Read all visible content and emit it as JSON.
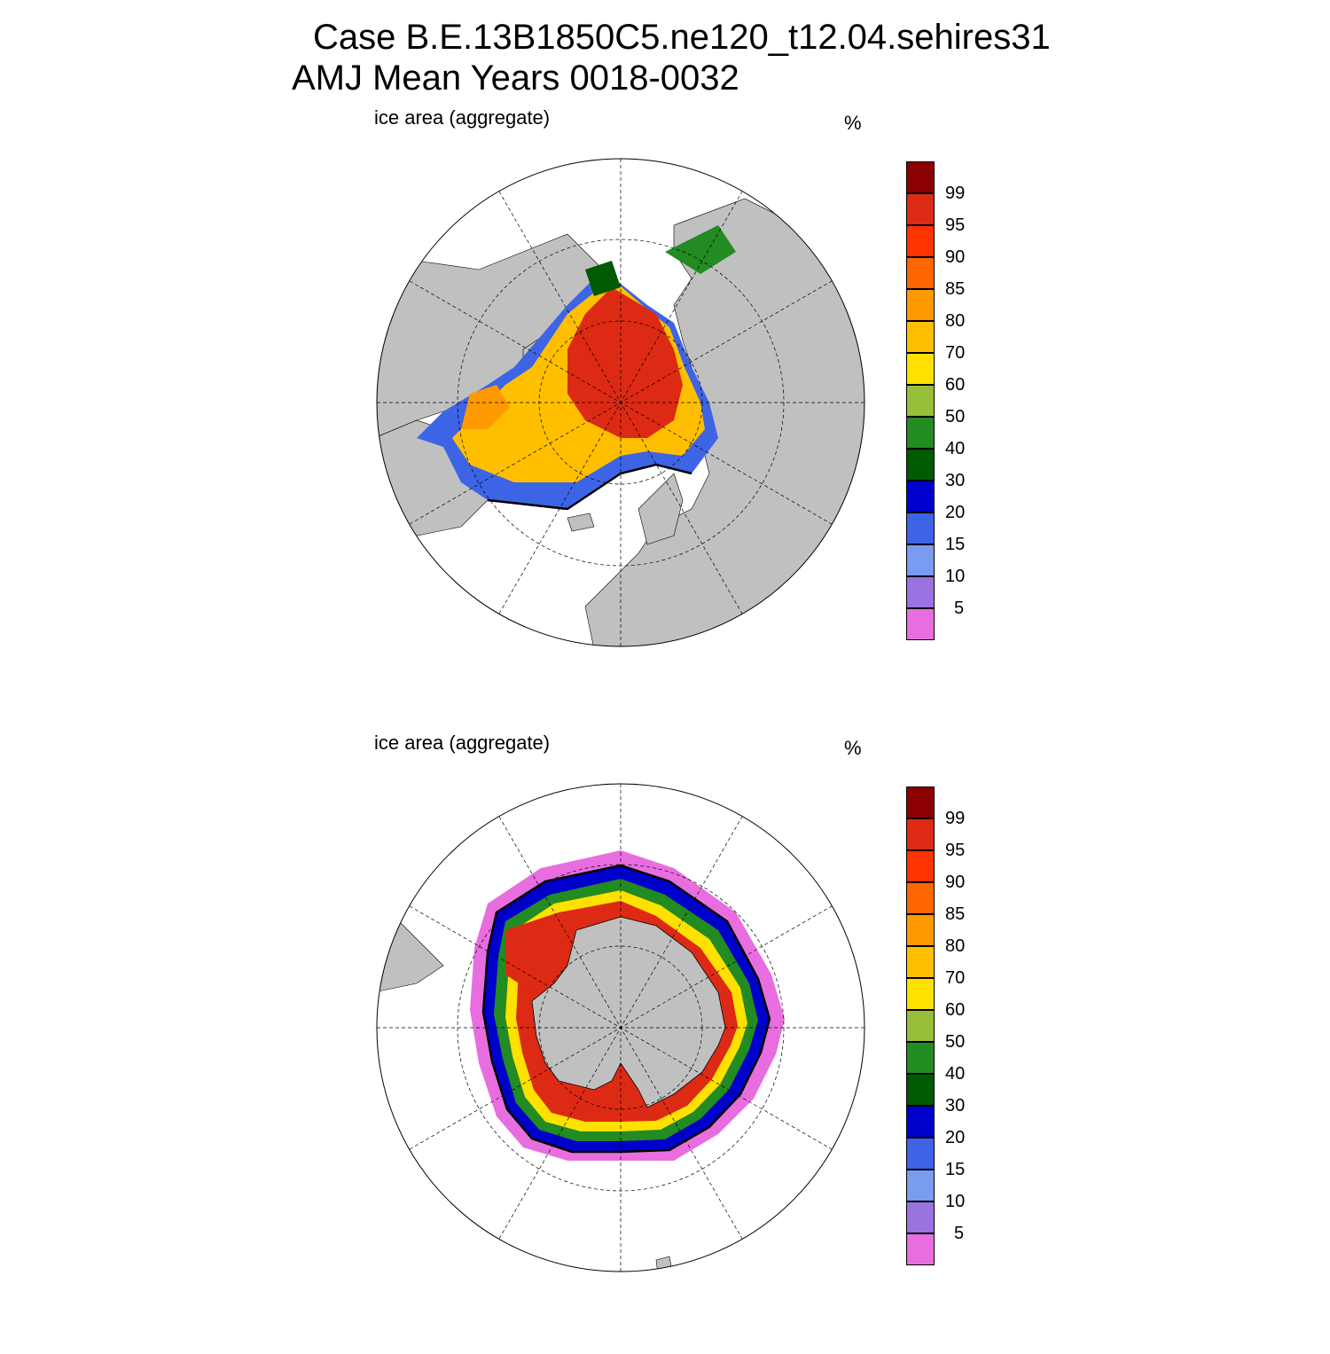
{
  "title_line1": "Case B.E.13B1850C5.ne120_t12.04.sehires31",
  "title_line2": "AMJ Mean   Years 0018-0032",
  "colors": {
    "land": "#c0c0c0",
    "ocean": "#ffffff",
    "outline": "#000000",
    "levels": [
      "#e86ee0",
      "#9a73e0",
      "#7a9cf0",
      "#3e64e6",
      "#0000cc",
      "#005a00",
      "#228b22",
      "#98bf3a",
      "#ffe100",
      "#ffbf00",
      "#ff9900",
      "#ff6600",
      "#ff3300",
      "#dd2a14",
      "#8b0000"
    ]
  },
  "colorbar": {
    "levels": [
      "5",
      "10",
      "15",
      "20",
      "30",
      "40",
      "50",
      "60",
      "70",
      "80",
      "85",
      "90",
      "95",
      "99"
    ]
  },
  "panels": [
    {
      "id": "north",
      "label": "ice area  (aggregate)",
      "unit": "%",
      "hemisphere": "north"
    },
    {
      "id": "south",
      "label": "ice area  (aggregate)",
      "unit": "%",
      "hemisphere": "south"
    }
  ]
}
